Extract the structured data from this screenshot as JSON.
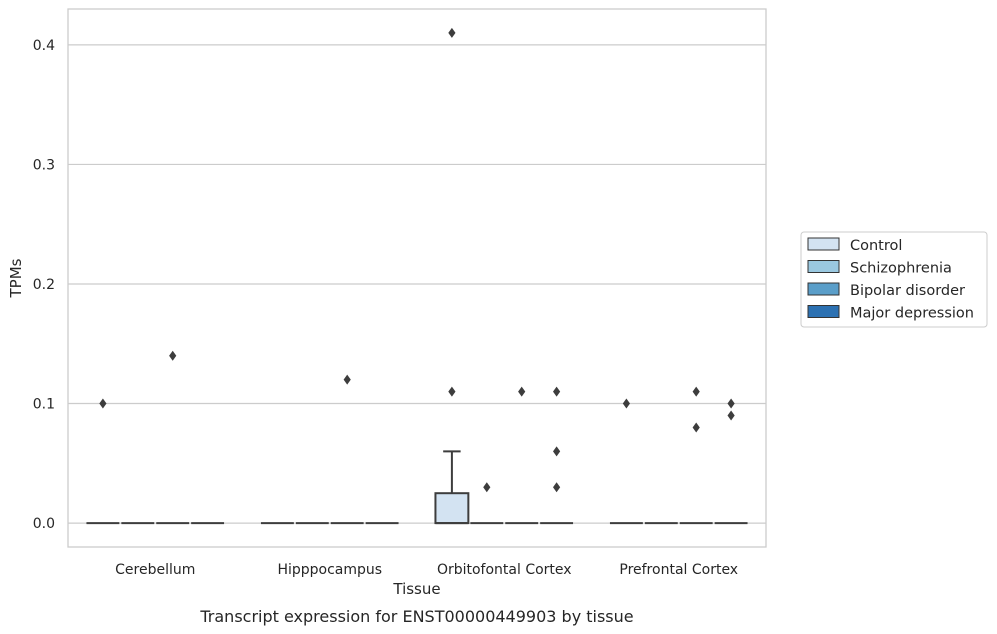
{
  "chart_data": {
    "type": "box",
    "xlabel": "Tissue",
    "ylabel": "TPMs",
    "caption": "Transcript expression for ENST00000449903 by tissue",
    "ylim": [
      -0.02,
      0.43
    ],
    "yticks": [
      0.0,
      0.1,
      0.2,
      0.3,
      0.4
    ],
    "ytick_labels": [
      "0.0",
      "0.1",
      "0.2",
      "0.3",
      "0.4"
    ],
    "grid": "horizontal",
    "legend_position": "right",
    "categories": [
      "Cerebellum",
      "Hipppocampus",
      "Orbitofontal Cortex",
      "Prefrontal Cortex"
    ],
    "series": [
      {
        "name": "Control",
        "color": "#d3e3f2",
        "boxes": [
          {
            "q1": 0.0,
            "median": 0.0,
            "q3": 0.0,
            "whisker_low": 0.0,
            "whisker_high": 0.0,
            "outliers": [
              0.1
            ]
          },
          {
            "q1": 0.0,
            "median": 0.0,
            "q3": 0.0,
            "whisker_low": 0.0,
            "whisker_high": 0.0,
            "outliers": []
          },
          {
            "q1": 0.0,
            "median": 0.0,
            "q3": 0.025,
            "whisker_low": 0.0,
            "whisker_high": 0.06,
            "outliers": [
              0.41,
              0.11
            ]
          },
          {
            "q1": 0.0,
            "median": 0.0,
            "q3": 0.0,
            "whisker_low": 0.0,
            "whisker_high": 0.0,
            "outliers": [
              0.1
            ]
          }
        ]
      },
      {
        "name": "Schizophrenia",
        "color": "#9ac8e0",
        "boxes": [
          {
            "q1": 0.0,
            "median": 0.0,
            "q3": 0.0,
            "whisker_low": 0.0,
            "whisker_high": 0.0,
            "outliers": []
          },
          {
            "q1": 0.0,
            "median": 0.0,
            "q3": 0.0,
            "whisker_low": 0.0,
            "whisker_high": 0.0,
            "outliers": []
          },
          {
            "q1": 0.0,
            "median": 0.0,
            "q3": 0.0,
            "whisker_low": 0.0,
            "whisker_high": 0.0,
            "outliers": [
              0.03
            ]
          },
          {
            "q1": 0.0,
            "median": 0.0,
            "q3": 0.0,
            "whisker_low": 0.0,
            "whisker_high": 0.0,
            "outliers": []
          }
        ]
      },
      {
        "name": "Bipolar disorder",
        "color": "#5a9ec9",
        "boxes": [
          {
            "q1": 0.0,
            "median": 0.0,
            "q3": 0.0,
            "whisker_low": 0.0,
            "whisker_high": 0.0,
            "outliers": [
              0.14
            ]
          },
          {
            "q1": 0.0,
            "median": 0.0,
            "q3": 0.0,
            "whisker_low": 0.0,
            "whisker_high": 0.0,
            "outliers": [
              0.12
            ]
          },
          {
            "q1": 0.0,
            "median": 0.0,
            "q3": 0.0,
            "whisker_low": 0.0,
            "whisker_high": 0.0,
            "outliers": [
              0.11
            ]
          },
          {
            "q1": 0.0,
            "median": 0.0,
            "q3": 0.0,
            "whisker_low": 0.0,
            "whisker_high": 0.0,
            "outliers": [
              0.11,
              0.08
            ]
          }
        ]
      },
      {
        "name": "Major depression",
        "color": "#2c71b2",
        "boxes": [
          {
            "q1": 0.0,
            "median": 0.0,
            "q3": 0.0,
            "whisker_low": 0.0,
            "whisker_high": 0.0,
            "outliers": []
          },
          {
            "q1": 0.0,
            "median": 0.0,
            "q3": 0.0,
            "whisker_low": 0.0,
            "whisker_high": 0.0,
            "outliers": []
          },
          {
            "q1": 0.0,
            "median": 0.0,
            "q3": 0.0,
            "whisker_low": 0.0,
            "whisker_high": 0.0,
            "outliers": [
              0.11,
              0.06,
              0.03
            ]
          },
          {
            "q1": 0.0,
            "median": 0.0,
            "q3": 0.0,
            "whisker_low": 0.0,
            "whisker_high": 0.0,
            "outliers": [
              0.1,
              0.09
            ]
          }
        ]
      }
    ]
  }
}
